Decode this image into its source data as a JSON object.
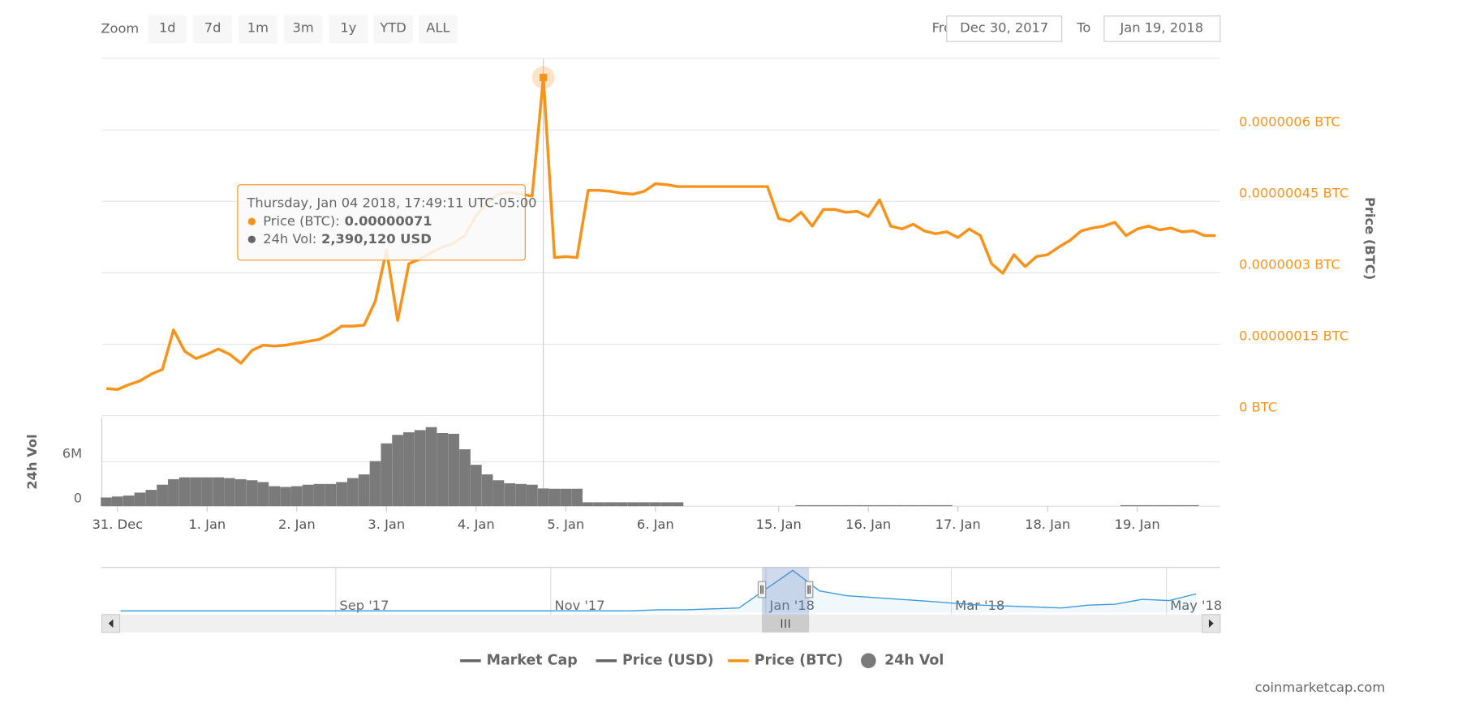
{
  "toolbar": {
    "zoom_label": "Zoom",
    "zoom_buttons": [
      "1d",
      "7d",
      "1m",
      "3m",
      "1y",
      "YTD",
      "ALL"
    ],
    "from_label": "From",
    "from_date": "Dec 30, 2017",
    "to_label": "To",
    "to_date": "Jan 19, 2018"
  },
  "chart_data": [
    {
      "type": "line",
      "xlim": [
        -0.4,
        99.4
      ],
      "xticks": [
        {
          "value": 1,
          "label": "31. Dec"
        },
        {
          "value": 9,
          "label": "1. Jan"
        },
        {
          "value": 17,
          "label": "2. Jan"
        },
        {
          "value": 25,
          "label": "3. Jan"
        },
        {
          "value": 33,
          "label": "4. Jan"
        },
        {
          "value": 41,
          "label": "5. Jan"
        },
        {
          "value": 49,
          "label": "6. Jan"
        },
        {
          "value": 60,
          "label": "15. Jan"
        },
        {
          "value": 68,
          "label": "16. Jan"
        },
        {
          "value": 76,
          "label": "17. Jan"
        },
        {
          "value": 84,
          "label": "18. Jan"
        },
        {
          "value": 92,
          "label": "19. Jan"
        }
      ],
      "ylim": [
        0,
        7.5e-07
      ],
      "yticks": [
        {
          "value": 0,
          "label": "0 BTC"
        },
        {
          "value": 1.5e-07,
          "label": "0.00000015 BTC"
        },
        {
          "value": 3e-07,
          "label": "0.0000003 BTC"
        },
        {
          "value": 4.5e-07,
          "label": "0.00000045 BTC"
        },
        {
          "value": 6e-07,
          "label": "0.0000006 BTC"
        }
      ],
      "y_axis_title": "Price (BTC)",
      "y2lim": [
        0,
        12000000
      ],
      "y2ticks": [
        0,
        {
          "value": 6000000,
          "label": "6M"
        }
      ],
      "y2_axis_title": "24h Vol",
      "grid": true,
      "legend": "bottom",
      "series": [
        {
          "name": "Market Cap",
          "color": "#666666",
          "visible": false
        },
        {
          "name": "Price (USD)",
          "color": "#666666",
          "visible": false
        },
        {
          "name": "Price (BTC)",
          "color": "#f7931a",
          "values": [
            5.7e-08,
            5.5e-08,
            6.5e-08,
            7.3e-08,
            8.7e-08,
            9.7e-08,
            1.8e-07,
            1.35e-07,
            1.2e-07,
            1.29e-07,
            1.4e-07,
            1.29e-07,
            1.1e-07,
            1.37e-07,
            1.48e-07,
            1.46e-07,
            1.48e-07,
            1.52e-07,
            1.56e-07,
            1.6e-07,
            1.72e-07,
            1.88e-07,
            1.88e-07,
            1.9e-07,
            2.4e-07,
            3.48e-07,
            2e-07,
            3.19e-07,
            3.29e-07,
            3.42e-07,
            3.54e-07,
            3.62e-07,
            3.78e-07,
            4.2e-07,
            4.47e-07,
            4.65e-07,
            4.69e-07,
            4.65e-07,
            4.61e-07,
            7.1e-07,
            3.32e-07,
            3.34e-07,
            3.32e-07,
            4.73e-07,
            4.73e-07,
            4.71e-07,
            4.67e-07,
            4.65e-07,
            4.71e-07,
            4.87e-07,
            4.85e-07,
            4.81e-07,
            4.81e-07,
            4.81e-07,
            4.81e-07,
            4.81e-07,
            4.81e-07,
            4.81e-07,
            4.81e-07,
            4.81e-07,
            4.14e-07,
            4.08e-07,
            4.27e-07,
            3.98e-07,
            4.33e-07,
            4.33e-07,
            4.27e-07,
            4.29e-07,
            4.18e-07,
            4.53e-07,
            3.98e-07,
            3.92e-07,
            4.02e-07,
            3.88e-07,
            3.82e-07,
            3.86e-07,
            3.74e-07,
            3.92e-07,
            3.78e-07,
            3.19e-07,
            2.99e-07,
            3.38e-07,
            3.13e-07,
            3.34e-07,
            3.38e-07,
            3.54e-07,
            3.68e-07,
            3.88e-07,
            3.94e-07,
            3.98e-07,
            4.06e-07,
            3.78e-07,
            3.92e-07,
            3.98e-07,
            3.9e-07,
            3.94e-07,
            3.86e-07,
            3.88e-07,
            3.78e-07,
            3.78e-07
          ]
        },
        {
          "name": "24h Vol",
          "color": "#7a7a7a",
          "type": "bar",
          "axis": "y2",
          "values": [
            1170000,
            1300000,
            1430000,
            1830000,
            2200000,
            2900000,
            3650000,
            3900000,
            3900000,
            3900000,
            3900000,
            3800000,
            3650000,
            3500000,
            3260000,
            2700000,
            2600000,
            2700000,
            2900000,
            3000000,
            3000000,
            3260000,
            3800000,
            4300000,
            6100000,
            8500000,
            9650000,
            10000000,
            10300000,
            10700000,
            9900000,
            9800000,
            7700000,
            5600000,
            4300000,
            3500000,
            3100000,
            3000000,
            2900000,
            2390120,
            2350000,
            2350000,
            2350000,
            520000,
            520000,
            520000,
            520000,
            520000,
            520000,
            520000,
            520000,
            520000,
            null,
            null,
            null,
            null,
            null,
            null,
            null,
            null,
            null,
            null,
            130000,
            130000,
            130000,
            130000,
            130000,
            130000,
            130000,
            130000,
            130000,
            130000,
            130000,
            130000,
            130000,
            130000,
            null,
            null,
            null,
            null,
            null,
            null,
            null,
            null,
            null,
            null,
            null,
            null,
            null,
            null,
            null,
            130000,
            130000,
            130000,
            130000,
            130000,
            130000,
            130000,
            null,
            null
          ]
        }
      ],
      "tooltip": {
        "date": "Thursday, Jan 04 2018, 17:49:11 UTC-05:00",
        "items": [
          {
            "label": "Price (BTC):",
            "value": "0.00000071"
          },
          {
            "label": "24h Vol:",
            "value": "2,390,120 USD"
          }
        ]
      }
    },
    {
      "type": "area",
      "xlim": [
        -0.7,
        40.9
      ],
      "ylim": [
        0,
        7.5e-07
      ],
      "xticks": [
        {
          "value": 8,
          "label": "Sep '17"
        },
        {
          "value": 16,
          "label": "Nov '17"
        },
        {
          "value": 24,
          "label": "Jan '18"
        },
        {
          "value": 30.9,
          "label": "Mar '18"
        },
        {
          "value": 38.9,
          "label": "May '18"
        }
      ],
      "color": "#3b9ad9",
      "values": [
        3e-08,
        3e-08,
        3e-08,
        3e-08,
        3e-08,
        3e-08,
        3e-08,
        3e-08,
        3e-08,
        3e-08,
        3e-08,
        3e-08,
        3e-08,
        3e-08,
        3e-08,
        3e-08,
        3e-08,
        3e-08,
        3e-08,
        3e-08,
        4.7e-08,
        4.7e-08,
        6.2e-08,
        7.8e-08,
        3.9e-07,
        7e-07,
        3.6e-07,
        2.8e-07,
        2.5e-07,
        2.2e-07,
        1.9e-07,
        1.56e-07,
        1.25e-07,
        1.1e-07,
        9.4e-08,
        7.8e-08,
        1.25e-07,
        1.4e-07,
        2.2e-07,
        2e-07,
        3.1e-07
      ]
    }
  ],
  "credit": "coinmarketcap.com"
}
